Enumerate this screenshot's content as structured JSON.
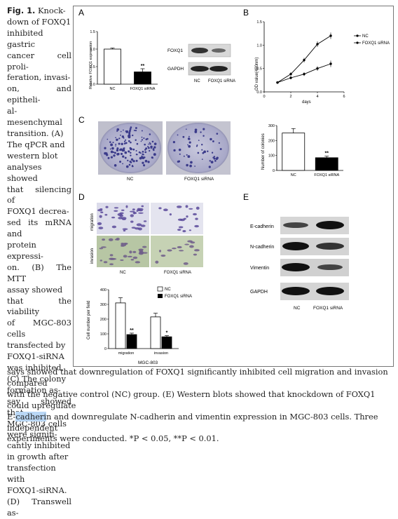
{
  "caption": {
    "figure_label": "Fig. 1.",
    "side_lines": [
      "Knock-",
      "down of FOXQ1",
      "inhibited gastric",
      "cancer cell proli-",
      "feration, invasi-",
      "on, and epitheli-",
      "al-mesenchymal",
      "transition. (A)",
      "The qPCR and",
      "western blot",
      "analyses showed",
      "that silencing of",
      "FOXQ1 decrea-",
      "sed its mRNA and",
      "protein expressi-",
      "on. (B) The MTT",
      "assay showed",
      "that the viability",
      "of MGC-803 cells",
      "transfected by",
      "FOXQ1-siRNA",
      "was inhibited.",
      "(C) The colony",
      "formation as-",
      "say showed that",
      "MGC-803 cells",
      "were signifi-",
      "cantly inhibited",
      "in growth after",
      "transfection with",
      "FOXQ1-siRNA.",
      "(D) Transwell as-"
    ],
    "bottom_line1": "says showed that downregulation of FOXQ1 significantly inhibited cell migration and invasion compared",
    "bottom_line2": "with the negative control (NC) group. (E) Western blots showed that knockdown of FOXQ1 could upregulate",
    "bottom_line3_pre": "E-",
    "bottom_line3_highlight": "cadheri",
    "bottom_line3_post": "n and downregulate N-cadherin and vimentin expression in MGC-803 cells. Three independent",
    "bottom_line4": "experiments were conducted. *P < 0.05, **P < 0.01."
  },
  "panels": {
    "a": "A",
    "b": "B",
    "c": "C",
    "d": "D",
    "e": "E"
  },
  "panelA": {
    "ylabel": "Relative FOXQ1 expression",
    "yticks": [
      "0.0",
      "0.5",
      "1.0",
      "1.5"
    ],
    "categories": [
      "NC",
      "FOXQ1 siRNA"
    ],
    "sig": "**",
    "blot_labels": [
      "FOXQ1",
      "GAPDH"
    ],
    "blot_lanes": [
      "NC",
      "FOXQ1 siRNA"
    ]
  },
  "panelB": {
    "ylabel": "OD value(490nm)",
    "xlabel": "days",
    "xticks": [
      "0",
      "2",
      "4",
      "6"
    ],
    "yticks": [
      "0.0",
      "0.5",
      "1.0",
      "1.5"
    ],
    "legend": [
      "NC",
      "FOXQ1 siRNA"
    ]
  },
  "panelC": {
    "dish_labels": [
      "NC",
      "FOXQ1 siRNA"
    ],
    "ylabel": "Number of colonies",
    "yticks": [
      "0",
      "100",
      "200",
      "300"
    ],
    "categories": [
      "NC",
      "FOXQ1 siRNA"
    ],
    "sig": "**"
  },
  "panelD": {
    "row_labels": [
      "migration",
      "invasion"
    ],
    "col_labels": [
      "NC",
      "FOXQ1 siRNA"
    ],
    "ylabel": "Cell number per field",
    "yticks": [
      "0",
      "100",
      "200",
      "300",
      "400"
    ],
    "groups": [
      "migration",
      "invasion"
    ],
    "legend": [
      "NC",
      "FOXQ1 siRNA"
    ],
    "xlabel": "MGC-803",
    "sig": [
      "**",
      "*"
    ]
  },
  "panelE": {
    "rows": [
      "E-cadherin",
      "N-cadherin",
      "Vimentin",
      "GAPDH"
    ],
    "lanes": [
      "NC",
      "FOXQ1 siRNA"
    ]
  },
  "chart_data": [
    {
      "type": "bar",
      "panel": "A",
      "categories": [
        "NC",
        "FOXQ1 siRNA"
      ],
      "values": [
        1.0,
        0.35
      ],
      "errors": [
        0.03,
        0.09
      ],
      "ylabel": "Relative FOXQ1 expression",
      "ylim": [
        0,
        1.5
      ]
    },
    {
      "type": "line",
      "panel": "B",
      "x": [
        1,
        2,
        3,
        4,
        5
      ],
      "series": [
        {
          "name": "NC",
          "values": [
            0.2,
            0.38,
            0.68,
            1.02,
            1.2
          ]
        },
        {
          "name": "FOXQ1 siRNA",
          "values": [
            0.2,
            0.3,
            0.38,
            0.5,
            0.6
          ]
        }
      ],
      "xlabel": "days",
      "ylabel": "OD value(490nm)",
      "xlim": [
        0,
        6
      ],
      "ylim": [
        0,
        1.5
      ]
    },
    {
      "type": "bar",
      "panel": "C",
      "categories": [
        "NC",
        "FOXQ1 siRNA"
      ],
      "values": [
        250,
        85
      ],
      "errors": [
        30,
        10
      ],
      "ylabel": "Number of colonies",
      "ylim": [
        0,
        300
      ]
    },
    {
      "type": "bar",
      "panel": "D",
      "categories": [
        "migration",
        "invasion"
      ],
      "series": [
        {
          "name": "NC",
          "values": [
            310,
            215
          ]
        },
        {
          "name": "FOXQ1 siRNA",
          "values": [
            95,
            80
          ]
        }
      ],
      "errors": [
        [
          35,
          25
        ],
        [
          10,
          8
        ]
      ],
      "xlabel": "MGC-803",
      "ylabel": "Cell number per field",
      "ylim": [
        0,
        400
      ]
    }
  ]
}
